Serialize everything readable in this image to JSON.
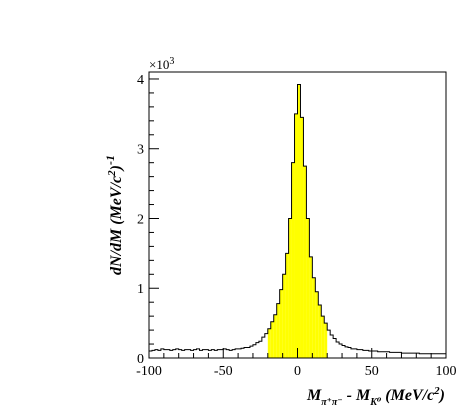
{
  "chart_data": {
    "type": "area",
    "title": "",
    "xlabel_parts": {
      "m1": "M",
      "sub1": "π⁺π⁻",
      "minus": " - ",
      "m2": "M",
      "sub2": "K⁰",
      "unit_open": " (MeV/c",
      "unit_sup": "2",
      "unit_close": ")"
    },
    "ylabel_parts": {
      "main": "dN/dM (MeV/c",
      "sup_2": "2",
      "close": ")",
      "sup_neg1": "-1"
    },
    "y_multiplier": {
      "base": "×10",
      "exp": "3"
    },
    "x_ticks": [
      "-100",
      "-50",
      "0",
      "50",
      "100"
    ],
    "y_ticks": [
      "0",
      "1",
      "2",
      "3",
      "4"
    ],
    "xlim": [
      -100,
      100
    ],
    "ylim": [
      0,
      4.1
    ],
    "bin_width": 2,
    "highlight_range": [
      -20,
      20
    ],
    "highlight_color": "#ffff00",
    "x": [
      -100,
      -98,
      -96,
      -94,
      -92,
      -90,
      -88,
      -86,
      -84,
      -82,
      -80,
      -78,
      -76,
      -74,
      -72,
      -70,
      -68,
      -66,
      -64,
      -62,
      -60,
      -58,
      -56,
      -54,
      -52,
      -50,
      -48,
      -46,
      -44,
      -42,
      -40,
      -38,
      -36,
      -34,
      -32,
      -30,
      -28,
      -26,
      -24,
      -22,
      -20,
      -18,
      -16,
      -14,
      -12,
      -10,
      -8,
      -6,
      -4,
      -2,
      0,
      2,
      4,
      6,
      8,
      10,
      12,
      14,
      16,
      18,
      20,
      22,
      24,
      26,
      28,
      30,
      32,
      34,
      36,
      38,
      40,
      42,
      44,
      46,
      48,
      50,
      52,
      54,
      56,
      58,
      60,
      62,
      64,
      66,
      68,
      70,
      72,
      74,
      76,
      78,
      80,
      82,
      84,
      86,
      88,
      90,
      92,
      94,
      96,
      98
    ],
    "values": [
      0.1,
      0.11,
      0.12,
      0.11,
      0.13,
      0.12,
      0.12,
      0.11,
      0.12,
      0.13,
      0.12,
      0.11,
      0.12,
      0.12,
      0.11,
      0.12,
      0.13,
      0.11,
      0.12,
      0.12,
      0.11,
      0.12,
      0.11,
      0.12,
      0.12,
      0.13,
      0.12,
      0.11,
      0.12,
      0.13,
      0.13,
      0.14,
      0.15,
      0.15,
      0.17,
      0.19,
      0.22,
      0.24,
      0.3,
      0.35,
      0.42,
      0.52,
      0.62,
      0.78,
      0.98,
      1.2,
      1.5,
      2.0,
      2.8,
      3.5,
      3.92,
      3.45,
      2.75,
      2.0,
      1.45,
      1.15,
      0.95,
      0.76,
      0.6,
      0.5,
      0.4,
      0.33,
      0.28,
      0.23,
      0.2,
      0.18,
      0.16,
      0.15,
      0.13,
      0.13,
      0.12,
      0.12,
      0.11,
      0.11,
      0.1,
      0.1,
      0.1,
      0.09,
      0.09,
      0.09,
      0.09,
      0.08,
      0.08,
      0.08,
      0.08,
      0.07,
      0.07,
      0.07,
      0.07,
      0.07,
      0.07,
      0.06,
      0.06,
      0.06,
      0.06,
      0.06,
      0.06,
      0.06,
      0.06,
      0.06
    ]
  }
}
